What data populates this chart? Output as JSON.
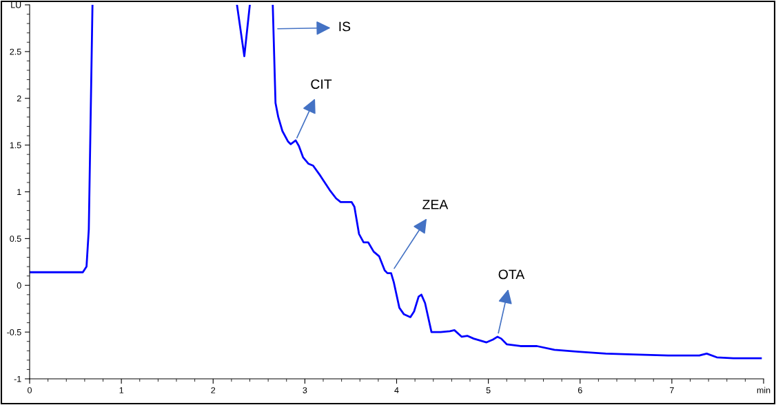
{
  "chart_data": {
    "type": "line",
    "x": [
      0,
      0.3,
      0.58,
      0.62,
      0.645,
      0.66,
      0.685,
      1.5,
      2.26,
      2.34,
      2.4,
      2.5,
      2.65,
      2.68,
      2.71,
      2.755,
      2.815,
      2.845,
      2.9,
      2.935,
      2.98,
      3.04,
      3.09,
      3.17,
      3.27,
      3.34,
      3.39,
      3.51,
      3.54,
      3.59,
      3.64,
      3.69,
      3.75,
      3.81,
      3.87,
      3.9,
      3.94,
      3.97,
      4.03,
      4.08,
      4.15,
      4.19,
      4.24,
      4.27,
      4.31,
      4.38,
      4.48,
      4.58,
      4.63,
      4.71,
      4.77,
      4.84,
      4.98,
      5.05,
      5.1,
      5.14,
      5.2,
      5.35,
      5.53,
      5.72,
      5.98,
      6.28,
      6.58,
      6.96,
      7.22,
      7.3,
      7.38,
      7.49,
      7.67,
      7.97
    ],
    "series": [
      {
        "color": "#0000ff",
        "values": [
          0.14,
          0.14,
          0.14,
          0.2,
          0.6,
          1.5,
          3.0,
          null,
          3.0,
          2.45,
          3.0,
          null,
          3.0,
          1.95,
          1.8,
          1.65,
          1.54,
          1.51,
          1.55,
          1.49,
          1.37,
          1.3,
          1.28,
          1.17,
          1.02,
          0.93,
          0.89,
          0.89,
          0.84,
          0.55,
          0.46,
          0.46,
          0.36,
          0.31,
          0.16,
          0.13,
          0.13,
          0.03,
          -0.24,
          -0.31,
          -0.34,
          -0.28,
          -0.12,
          -0.1,
          -0.19,
          -0.5,
          -0.5,
          -0.49,
          -0.48,
          -0.55,
          -0.54,
          -0.57,
          -0.61,
          -0.58,
          -0.55,
          -0.57,
          -0.63,
          -0.65,
          -0.65,
          -0.69,
          -0.71,
          -0.73,
          -0.74,
          -0.75,
          -0.75,
          -0.75,
          -0.73,
          -0.77,
          -0.78,
          -0.78
        ]
      }
    ],
    "xlim": [
      0,
      8
    ],
    "ylim": [
      -1,
      3
    ],
    "xticks": [
      0,
      1,
      2,
      3,
      4,
      5,
      6,
      7,
      {
        "value": 8,
        "label": "min"
      }
    ],
    "yticks": [
      -1,
      -0.5,
      0,
      0.5,
      1,
      1.5,
      2,
      2.5,
      {
        "value": 3,
        "label": "LU"
      }
    ],
    "grid": false,
    "legend": false,
    "annotations": [
      "IS",
      {
        "text": "CIT",
        "x": 2.9,
        "y": 1.55
      },
      {
        "text": "ZEA",
        "x": 3.94,
        "y": 0.13
      },
      {
        "text": "OTA",
        "x": 5.1,
        "y": -0.55
      }
    ]
  }
}
